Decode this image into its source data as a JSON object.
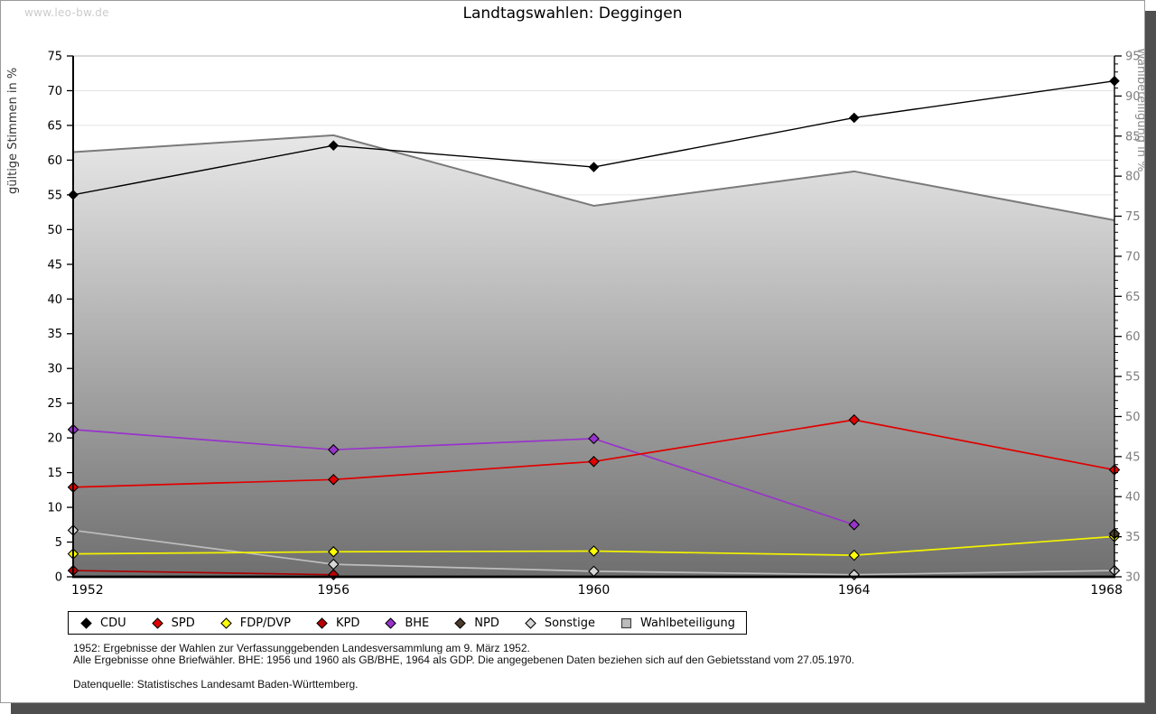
{
  "page": {
    "watermark": "www.leo-bw.de",
    "title": "Landtagswahlen: Deggingen",
    "footnote_line1": "1952: Ergebnisse der Wahlen zur Verfassunggebenden Landesversammlung am 9. März 1952.",
    "footnote_line2": "Alle Ergebnisse ohne Briefwähler. BHE: 1956 und 1960 als GB/BHE, 1964 als GDP. Die angegebenen Daten beziehen sich auf den Gebietsstand vom 27.05.1970.",
    "source_line": "Datenquelle: Statistisches Landesamt Baden-Württemberg."
  },
  "colors": {
    "shadow": "#4f4f4f",
    "grid": "#e4e4e4",
    "frame_top": "#b3b3b3",
    "right_axis_text": "#7d7d7d",
    "left_axis_title": "#333333",
    "right_axis_title": "#8a8a8a",
    "area_gradient_top": "#fdfdfd",
    "area_gradient_bottom": "#6f6f6f"
  },
  "chart_data": {
    "type": "line",
    "title": "Landtagswahlen: Deggingen",
    "x_years": [
      1952,
      1956,
      1960,
      1964,
      1968
    ],
    "left_axis": {
      "label": "gültige Stimmen in %",
      "min": 0,
      "max": 75,
      "tick_step": 5
    },
    "right_axis": {
      "label": "Wahlbeteiligung in %",
      "min": 30,
      "max": 95,
      "tick_step": 5,
      "minor_tick_step": 1
    },
    "grid": true,
    "legend_position": "bottom",
    "series": [
      {
        "name": "CDU",
        "axis": "left",
        "kind": "line",
        "color": "#000000",
        "marker_fill": "#000000",
        "values": [
          55.0,
          62.1,
          59.0,
          66.1,
          71.4
        ]
      },
      {
        "name": "SPD",
        "axis": "left",
        "kind": "line",
        "color": "#e10000",
        "marker_fill": "#e10000",
        "values": [
          12.9,
          14.0,
          16.6,
          22.6,
          15.4
        ]
      },
      {
        "name": "FDP/DVP",
        "axis": "left",
        "kind": "line",
        "color": "#f2f200",
        "marker_fill": "#ffff00",
        "values": [
          3.3,
          3.6,
          3.7,
          3.1,
          5.8
        ]
      },
      {
        "name": "KPD",
        "axis": "left",
        "kind": "line",
        "color": "#aa0000",
        "marker_fill": "#bb0000",
        "values": [
          0.9,
          0.3,
          null,
          null,
          null
        ]
      },
      {
        "name": "BHE",
        "axis": "left",
        "kind": "line",
        "color": "#9933cc",
        "marker_fill": "#9933cc",
        "values": [
          21.2,
          18.3,
          19.9,
          7.5,
          null
        ]
      },
      {
        "name": "NPD",
        "axis": "left",
        "kind": "line",
        "color": "#4a3b2a",
        "marker_fill": "#4a3b2a",
        "values": [
          null,
          null,
          null,
          null,
          6.2
        ]
      },
      {
        "name": "Sonstige",
        "axis": "left",
        "kind": "line",
        "color": "#bdbdbd",
        "marker_fill": "#d6d6d6",
        "values": [
          6.7,
          1.8,
          0.8,
          0.3,
          0.9
        ]
      },
      {
        "name": "Wahlbeteiligung",
        "axis": "right",
        "kind": "area",
        "color": "#7a7a7a",
        "marker_fill": "#bcbcbc",
        "values": [
          83.0,
          85.1,
          76.3,
          80.6,
          74.5
        ]
      }
    ],
    "draw_order": [
      "Wahlbeteiligung",
      "Sonstige",
      "KPD",
      "BHE",
      "SPD",
      "FDP/DVP",
      "NPD",
      "CDU"
    ]
  }
}
